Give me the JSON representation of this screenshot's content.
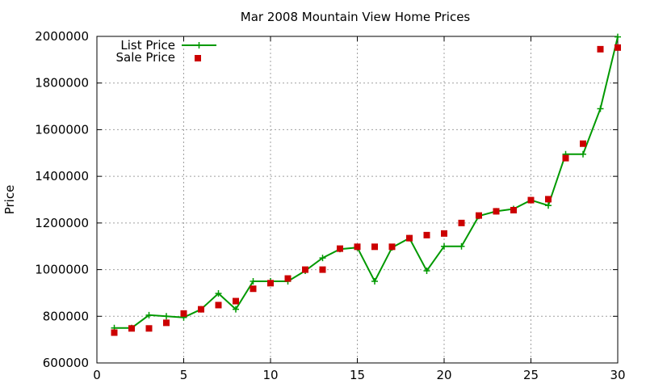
{
  "chart_data": {
    "type": "line",
    "title": "Mar 2008 Mountain View Home Prices",
    "xlabel": "",
    "ylabel": "Price",
    "xlim": [
      0,
      30
    ],
    "ylim": [
      600000,
      2000000
    ],
    "xticks": [
      0,
      5,
      10,
      15,
      20,
      25,
      30
    ],
    "yticks": [
      600000,
      800000,
      1000000,
      1200000,
      1400000,
      1600000,
      1800000,
      2000000
    ],
    "xtick_labels": [
      "0",
      "5",
      "10",
      "15",
      "20",
      "25",
      "30"
    ],
    "ytick_labels": [
      "600000",
      "800000",
      "1000000",
      "1200000",
      "1400000",
      "1600000",
      "1800000",
      "2000000"
    ],
    "grid": true,
    "legend_position": "top-left",
    "x": [
      1,
      2,
      3,
      4,
      5,
      6,
      7,
      8,
      9,
      10,
      11,
      12,
      13,
      14,
      15,
      16,
      17,
      18,
      19,
      20,
      21,
      22,
      23,
      24,
      25,
      26,
      27,
      28,
      29,
      30
    ],
    "series": [
      {
        "name": "List Price",
        "style": "line-plus",
        "color": "#009900",
        "values": [
          750000,
          750000,
          805000,
          800000,
          795000,
          830000,
          898000,
          830000,
          950000,
          950000,
          950000,
          995000,
          1050000,
          1088000,
          1095000,
          950000,
          1095000,
          1135000,
          995000,
          1100000,
          1100000,
          1230000,
          1250000,
          1260000,
          1298000,
          1275000,
          1495000,
          1495000,
          1690000,
          1998000
        ]
      },
      {
        "name": "Sale Price",
        "style": "square-markers",
        "color": "#cc0000",
        "values": [
          730000,
          748000,
          748000,
          772000,
          812000,
          830000,
          848000,
          865000,
          918000,
          942000,
          962000,
          1000000,
          1000000,
          1090000,
          1098000,
          1098000,
          1098000,
          1135000,
          1148000,
          1155000,
          1200000,
          1232000,
          1250000,
          1255000,
          1298000,
          1302000,
          1478000,
          1540000,
          1945000,
          1952000
        ]
      }
    ]
  }
}
